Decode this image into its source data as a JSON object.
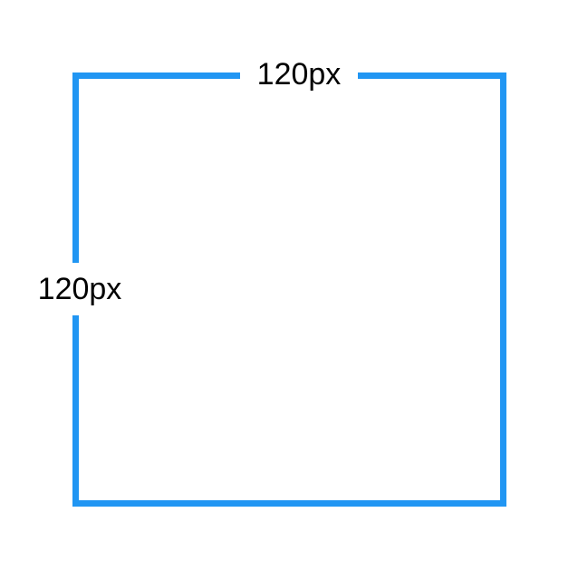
{
  "diagram": {
    "shape": "square",
    "border_color": "#2196f3",
    "background_color": "#ffffff",
    "labels": {
      "width_label": "120px",
      "height_label": "120px"
    }
  }
}
